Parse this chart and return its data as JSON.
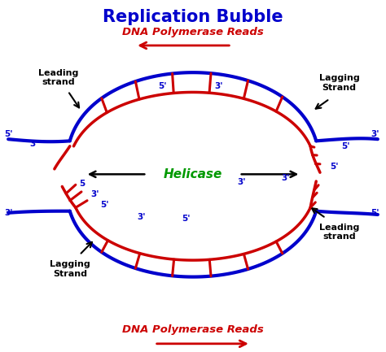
{
  "title": "Replication Bubble",
  "title_color": "#0000CC",
  "title_fontsize": 15,
  "blue": "#0000CC",
  "red": "#CC0000",
  "green": "#009900",
  "black": "#000000",
  "bg": "#FFFFFF",
  "dna_poly_text": "DNA Polymerase Reads",
  "helicase_text": "Helicase",
  "leading_text": "Leading\nstrand",
  "lagging_text": "Lagging\nStrand",
  "figsize": [
    4.74,
    4.33
  ],
  "dpi": 100
}
